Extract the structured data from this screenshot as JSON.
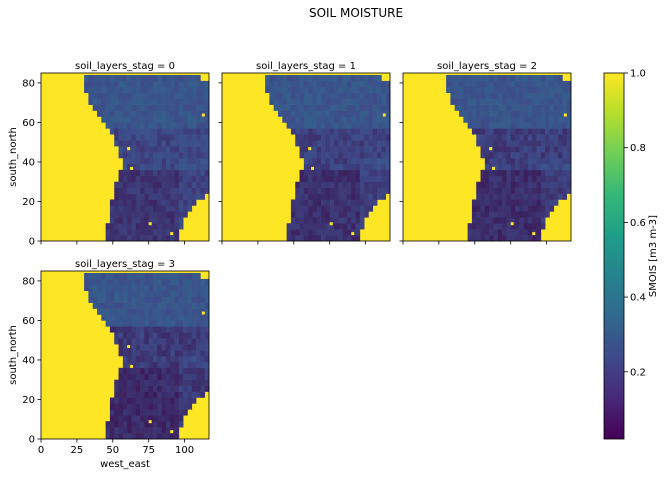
{
  "chart_data": {
    "type": "heatmap",
    "title": "SOIL MOISTURE",
    "facet_label": "soil_layers_stag",
    "facets": [
      {
        "title": "soil_layers_stag = 0",
        "soil_layers_stag": 0
      },
      {
        "title": "soil_layers_stag = 1",
        "soil_layers_stag": 1
      },
      {
        "title": "soil_layers_stag = 2",
        "soil_layers_stag": 2
      },
      {
        "title": "soil_layers_stag = 3",
        "soil_layers_stag": 3
      }
    ],
    "xlabel": "west_east",
    "ylabel": "south_north",
    "xlim": [
      0,
      117
    ],
    "ylim": [
      0,
      85
    ],
    "xticks": [
      0,
      25,
      50,
      75,
      100
    ],
    "yticks": [
      0,
      20,
      40,
      60,
      80
    ],
    "colorbar": {
      "label": "SMOIS [m3 m-3]",
      "range": [
        0.02,
        1.0
      ],
      "ticks": [
        0.2,
        0.4,
        0.6,
        0.8,
        1.0
      ],
      "tick_labels": [
        "0.2",
        "0.4",
        "0.6",
        "0.8",
        "1.0"
      ],
      "colormap": "viridis"
    },
    "field_description": {
      "ocean_value": 1.0,
      "land_typical_range": [
        0.1,
        0.35
      ],
      "drier_region": "central-southern land area (low values, dark purple)",
      "wetter_region": "northern land area (values around 0.3)"
    }
  },
  "colors": {
    "ocean": "#fde725",
    "land_dark": "#3b1c5a",
    "land_mid": "#3e4a89",
    "land_teal": "#31688e",
    "colorbar_stops": [
      "#440154",
      "#482878",
      "#3e4989",
      "#31688e",
      "#26828e",
      "#1f9e89",
      "#35b779",
      "#6ece58",
      "#b5de2b",
      "#fde725"
    ]
  }
}
